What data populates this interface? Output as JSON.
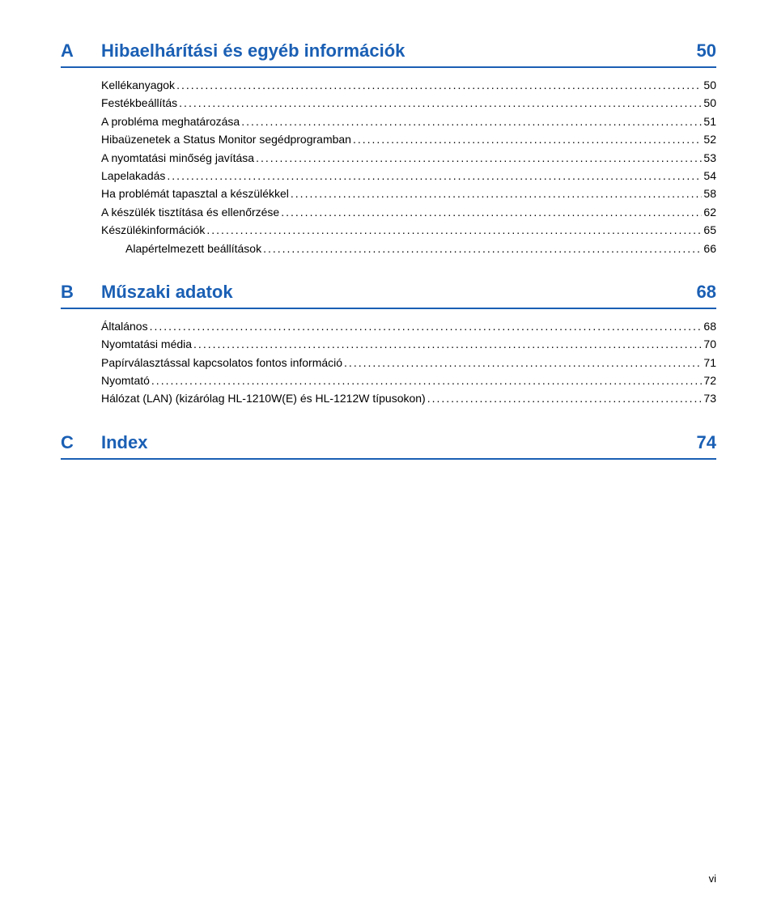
{
  "sections": [
    {
      "letter": "A",
      "title": "Hibaelhárítási és egyéb információk",
      "page": "50",
      "items": [
        {
          "label": "Kellékanyagok",
          "page": "50",
          "level": 0
        },
        {
          "label": "Festékbeállítás",
          "page": "50",
          "level": 0
        },
        {
          "label": "A probléma meghatározása",
          "page": "51",
          "level": 0
        },
        {
          "label": "Hibaüzenetek a Status Monitor segédprogramban",
          "page": "52",
          "level": 0
        },
        {
          "label": "A nyomtatási minőség javítása",
          "page": "53",
          "level": 0
        },
        {
          "label": "Lapelakadás",
          "page": "54",
          "level": 0
        },
        {
          "label": "Ha problémát tapasztal a készülékkel",
          "page": "58",
          "level": 0
        },
        {
          "label": "A készülék tisztítása és ellenőrzése",
          "page": "62",
          "level": 0
        },
        {
          "label": "Készülékinformációk",
          "page": "65",
          "level": 0
        },
        {
          "label": "Alapértelmezett beállítások",
          "page": "66",
          "level": 1
        },
        {
          "label": "",
          "page": "66",
          "level": 0,
          "noLabel": true
        }
      ]
    },
    {
      "letter": "B",
      "title": "Műszaki adatok",
      "page": "68",
      "items": [
        {
          "label": "Általános",
          "page": "68",
          "level": 0
        },
        {
          "label": "Nyomtatási média",
          "page": "70",
          "level": 0
        },
        {
          "label": "Papírválasztással kapcsolatos fontos információ",
          "page": "71",
          "level": 0
        },
        {
          "label": "Nyomtató",
          "page": "72",
          "level": 0
        },
        {
          "label": "Hálózat (LAN) (kizárólag HL-1210W(E) és HL-1212W típusokon)",
          "page": "73",
          "level": 0
        }
      ]
    },
    {
      "letter": "C",
      "title": "Index",
      "page": "74",
      "items": []
    }
  ],
  "footerPage": "vi",
  "colors": {
    "blue": "#1a5fb4",
    "text": "#000000",
    "background": "#ffffff"
  }
}
